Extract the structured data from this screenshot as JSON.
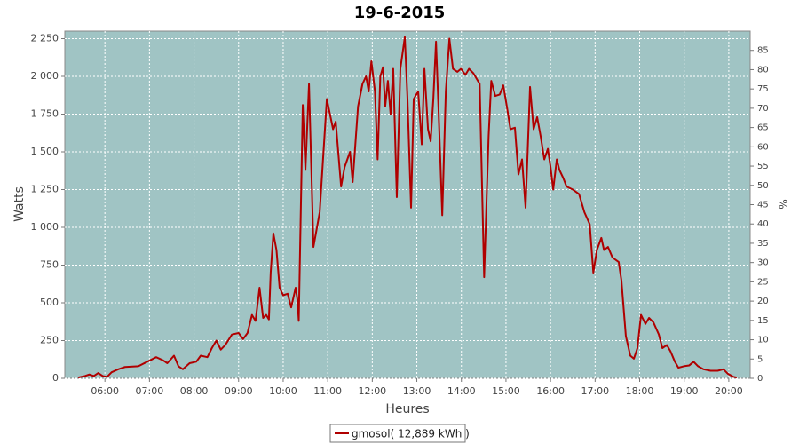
{
  "chart_data": {
    "type": "line",
    "title": "19-6-2015",
    "x_label": "Heures",
    "y_label": "Watts",
    "y2_label": "%",
    "xlim": [
      5.1,
      20.48
    ],
    "xticks": [
      {
        "value": 6,
        "label": "06:00"
      },
      {
        "value": 7,
        "label": "07:00"
      },
      {
        "value": 8,
        "label": "08:00"
      },
      {
        "value": 9,
        "label": "09:00"
      },
      {
        "value": 10,
        "label": "10:00"
      },
      {
        "value": 11,
        "label": "11:00"
      },
      {
        "value": 12,
        "label": "12:00"
      },
      {
        "value": 13,
        "label": "13:00"
      },
      {
        "value": 14,
        "label": "14:00"
      },
      {
        "value": 15,
        "label": "15:00"
      },
      {
        "value": 16,
        "label": "16:00"
      },
      {
        "value": 17,
        "label": "17:00"
      },
      {
        "value": 18,
        "label": "18:00"
      },
      {
        "value": 19,
        "label": "19:00"
      },
      {
        "value": 20,
        "label": "20:00"
      }
    ],
    "ylim": [
      0,
      2300
    ],
    "yticks": [
      0,
      250,
      500,
      750,
      {
        "value": 1000,
        "label": "1 000"
      },
      {
        "value": 1250,
        "label": "1 250"
      },
      {
        "value": 1500,
        "label": "1 500"
      },
      {
        "value": 1750,
        "label": "1 750"
      },
      {
        "value": 2000,
        "label": "2 000"
      },
      {
        "value": 2250,
        "label": "2 250"
      }
    ],
    "y2lim": [
      0,
      90
    ],
    "y2ticks": [
      0,
      5,
      10,
      15,
      20,
      25,
      30,
      35,
      40,
      45,
      50,
      55,
      60,
      65,
      70,
      75,
      80,
      85
    ],
    "grid": true,
    "legend": "bottom",
    "x": [
      5.4,
      5.55,
      5.65,
      5.75,
      5.85,
      5.95,
      6.05,
      6.15,
      6.3,
      6.45,
      6.75,
      6.95,
      7.15,
      7.3,
      7.4,
      7.55,
      7.65,
      7.75,
      7.9,
      8.05,
      8.15,
      8.3,
      8.4,
      8.5,
      8.6,
      8.7,
      8.85,
      9.0,
      9.1,
      9.2,
      9.3,
      9.38,
      9.47,
      9.55,
      9.62,
      9.68,
      9.72,
      9.78,
      9.85,
      9.92,
      10.0,
      10.1,
      10.18,
      10.28,
      10.32,
      10.35,
      10.44,
      10.5,
      10.58,
      10.68,
      10.82,
      10.98,
      11.12,
      11.18,
      11.3,
      11.38,
      11.5,
      11.56,
      11.68,
      11.78,
      11.86,
      11.92,
      11.98,
      12.06,
      12.12,
      12.18,
      12.24,
      12.29,
      12.35,
      12.41,
      12.47,
      12.55,
      12.63,
      12.73,
      12.79,
      12.87,
      12.93,
      13.03,
      13.11,
      13.17,
      13.25,
      13.31,
      13.37,
      13.43,
      13.49,
      13.57,
      13.65,
      13.73,
      13.81,
      13.91,
      13.99,
      14.09,
      14.17,
      14.27,
      14.41,
      14.51,
      14.61,
      14.67,
      14.76,
      14.86,
      14.94,
      15.02,
      15.1,
      15.2,
      15.28,
      15.36,
      15.44,
      15.54,
      15.62,
      15.7,
      15.78,
      15.86,
      15.94,
      16.0,
      16.06,
      16.14,
      16.2,
      16.28,
      16.36,
      16.5,
      16.64,
      16.76,
      16.88,
      16.96,
      17.04,
      17.14,
      17.2,
      17.29,
      17.39,
      17.53,
      17.59,
      17.69,
      17.79,
      17.87,
      17.95,
      18.03,
      18.13,
      18.21,
      18.31,
      18.43,
      18.51,
      18.61,
      18.69,
      18.79,
      18.87,
      18.99,
      19.11,
      19.21,
      19.31,
      19.43,
      19.59,
      19.75,
      19.88,
      19.98,
      20.1,
      20.18
    ],
    "series": [
      {
        "name": "gmosol( 12,889 kWh )",
        "color": "#b00000",
        "values": [
          5,
          15,
          25,
          15,
          35,
          15,
          10,
          40,
          60,
          75,
          80,
          110,
          140,
          120,
          100,
          150,
          80,
          60,
          100,
          110,
          150,
          140,
          200,
          250,
          190,
          220,
          290,
          300,
          260,
          300,
          420,
          380,
          600,
          400,
          420,
          390,
          700,
          960,
          850,
          600,
          550,
          560,
          470,
          600,
          520,
          380,
          1810,
          1380,
          1950,
          870,
          1100,
          1850,
          1650,
          1700,
          1270,
          1400,
          1500,
          1300,
          1800,
          1950,
          2000,
          1900,
          2100,
          1900,
          1450,
          2000,
          2060,
          1800,
          1970,
          1750,
          2050,
          1200,
          2050,
          2260,
          1850,
          1130,
          1850,
          1900,
          1550,
          2050,
          1650,
          1570,
          1850,
          2230,
          1750,
          1080,
          1900,
          2250,
          2050,
          2030,
          2050,
          2010,
          2050,
          2020,
          1950,
          670,
          1600,
          1970,
          1870,
          1880,
          1940,
          1800,
          1650,
          1660,
          1350,
          1450,
          1130,
          1930,
          1650,
          1730,
          1600,
          1450,
          1520,
          1400,
          1250,
          1450,
          1380,
          1330,
          1270,
          1250,
          1220,
          1100,
          1020,
          700,
          850,
          930,
          850,
          870,
          800,
          770,
          650,
          280,
          150,
          130,
          200,
          420,
          360,
          400,
          370,
          290,
          200,
          220,
          180,
          110,
          70,
          80,
          85,
          110,
          80,
          60,
          50,
          50,
          60,
          30,
          10,
          5
        ]
      }
    ]
  }
}
